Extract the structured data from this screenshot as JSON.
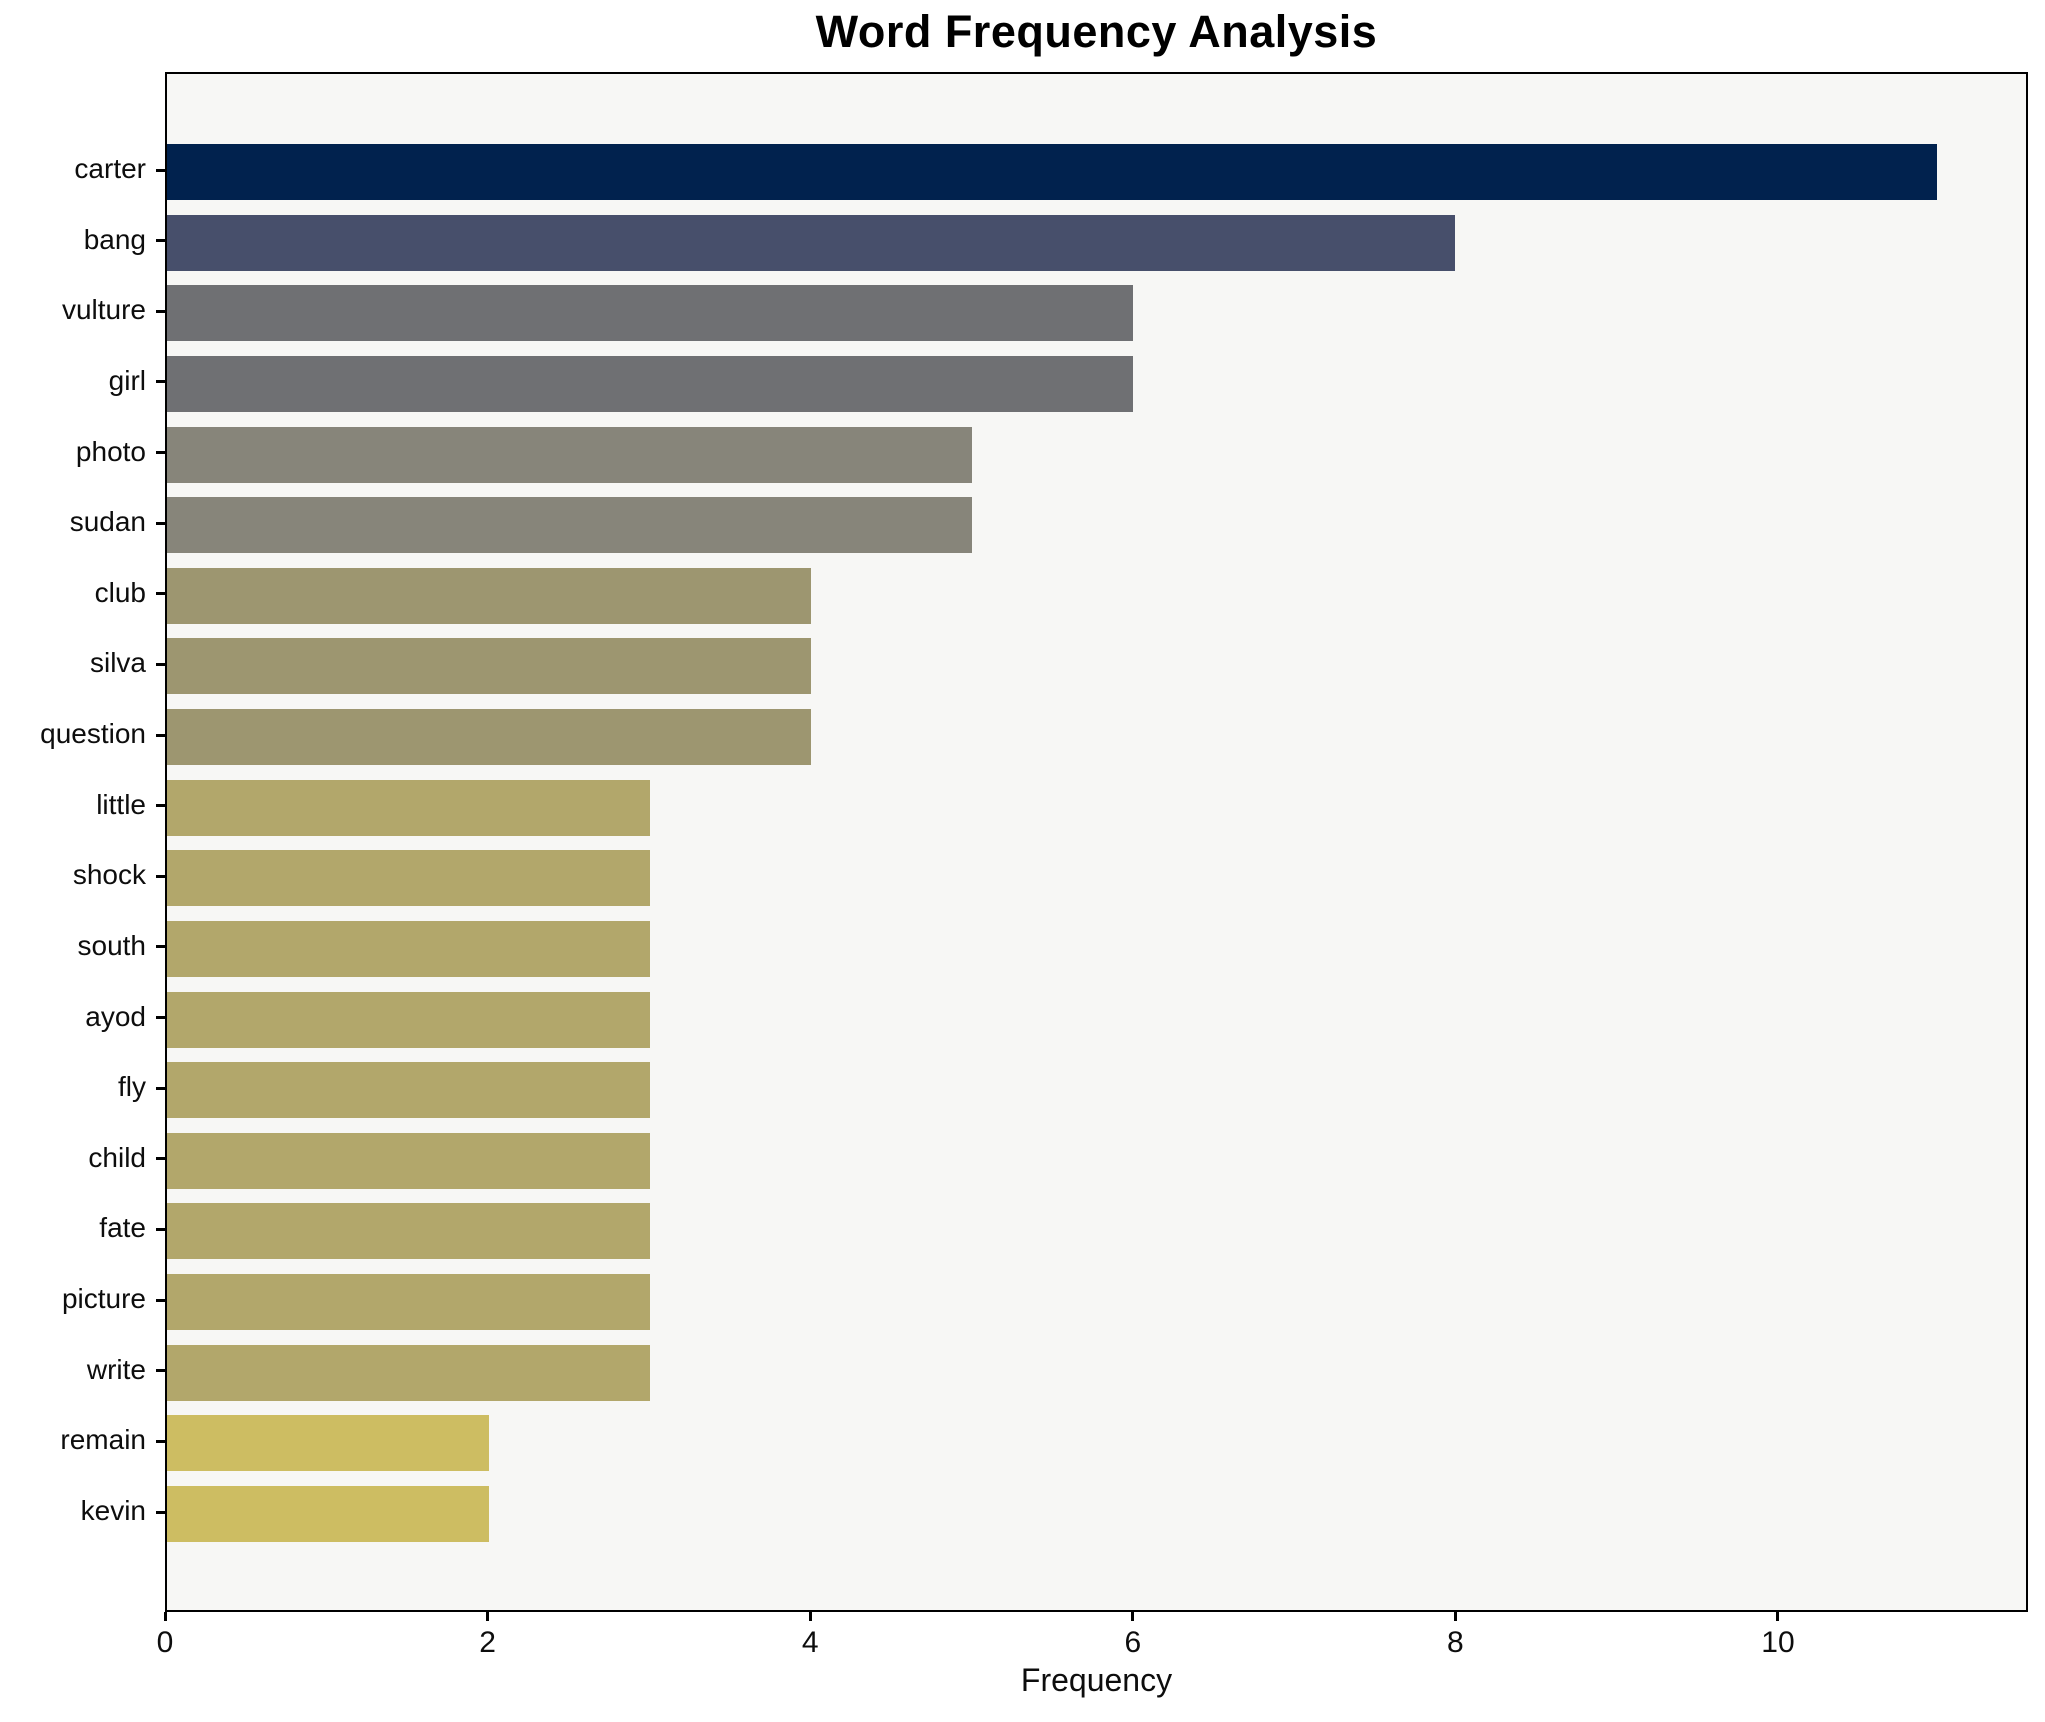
{
  "chart_data": {
    "type": "bar",
    "orientation": "horizontal",
    "title": "Word Frequency Analysis",
    "xlabel": "Frequency",
    "ylabel": "",
    "categories": [
      "carter",
      "bang",
      "vulture",
      "girl",
      "photo",
      "sudan",
      "club",
      "silva",
      "question",
      "little",
      "shock",
      "south",
      "ayod",
      "fly",
      "child",
      "fate",
      "picture",
      "write",
      "remain",
      "kevin"
    ],
    "values": [
      11,
      8,
      6,
      6,
      5,
      5,
      4,
      4,
      4,
      3,
      3,
      3,
      3,
      3,
      3,
      3,
      3,
      3,
      2,
      2
    ],
    "bar_colors": [
      "#01224E",
      "#474F6B",
      "#6F7073",
      "#6F7073",
      "#87857A",
      "#87857A",
      "#9D9670",
      "#9D9670",
      "#9D9670",
      "#B2A76B",
      "#B2A76B",
      "#B2A76B",
      "#B2A76B",
      "#B2A76B",
      "#B2A76B",
      "#B2A76B",
      "#B2A76B",
      "#B2A76B",
      "#CDBD62",
      "#CDBD62"
    ],
    "xlim": [
      0,
      11.55
    ],
    "xticks": [
      0,
      2,
      4,
      6,
      8,
      10
    ],
    "grid": false,
    "legend": "none"
  },
  "colors": {
    "figure_bg": "#FFFFFF",
    "plot_bg": "#F7F7F5",
    "spine": "#000000",
    "text": "#0D0D0D"
  }
}
